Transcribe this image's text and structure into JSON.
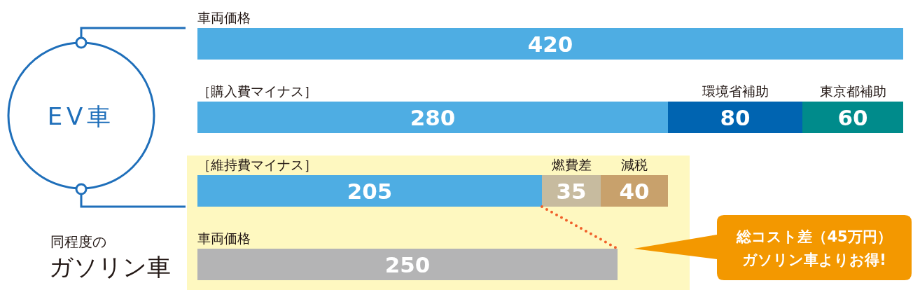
{
  "chart_data": {
    "type": "bar",
    "orientation": "horizontal",
    "stacked": true,
    "data_labels": true,
    "categories": [
      "車両価格",
      "［購入費マイナス］",
      "［維持費マイナス］",
      "車両価格"
    ],
    "series": [
      {
        "values": [
          420,
          280,
          205,
          250
        ],
        "colors": [
          "#4eade3",
          "#4eade3",
          "#4eade3",
          "#b4b4b5"
        ]
      },
      {
        "values": [
          null,
          80,
          35,
          null
        ],
        "colors": [
          null,
          "#0064b1",
          "#c7bb9f",
          null
        ]
      },
      {
        "values": [
          null,
          60,
          40,
          null
        ],
        "colors": [
          null,
          "#008b8b",
          "#c8a16c",
          null
        ]
      }
    ],
    "annotations": [
      "環境省補助",
      "東京都補助",
      "燃費差",
      "減税",
      "EV車",
      "同程度の",
      "ガソリン車",
      "総コスト差（45万円）",
      "ガソリン車よりお得!"
    ]
  }
}
